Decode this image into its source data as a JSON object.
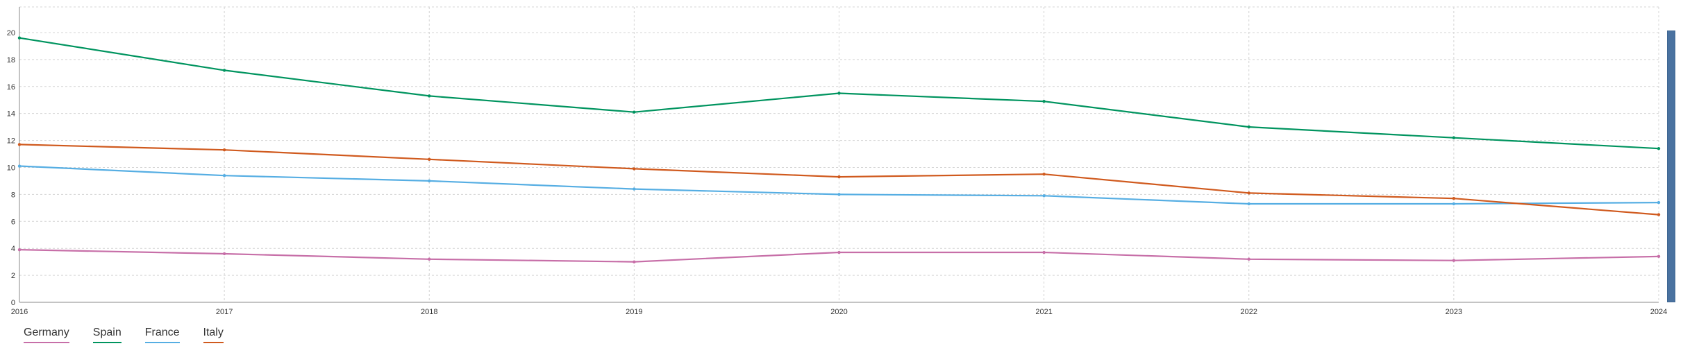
{
  "chart_data": {
    "type": "line",
    "x": [
      2016,
      2017,
      2018,
      2019,
      2020,
      2021,
      2022,
      2023,
      2024
    ],
    "ylim": [
      0,
      21.9
    ],
    "yticks": [
      0,
      2,
      4,
      6,
      8,
      10,
      12,
      14,
      16,
      18,
      20
    ],
    "grid": true,
    "legend_position": "bottom-left",
    "series": [
      {
        "name": "Germany",
        "color": "#c76fa8",
        "values": [
          3.9,
          3.6,
          3.2,
          3.0,
          3.7,
          3.7,
          3.2,
          3.1,
          3.4
        ]
      },
      {
        "name": "Spain",
        "color": "#00945f",
        "values": [
          19.6,
          17.2,
          15.3,
          14.1,
          15.5,
          14.9,
          13.0,
          12.2,
          11.4
        ]
      },
      {
        "name": "France",
        "color": "#56aee3",
        "values": [
          10.1,
          9.4,
          9.0,
          8.4,
          8.0,
          7.9,
          7.3,
          7.3,
          7.4
        ]
      },
      {
        "name": "Italy",
        "color": "#d05a1e",
        "values": [
          11.7,
          11.3,
          10.6,
          9.9,
          9.3,
          9.5,
          8.1,
          7.7,
          6.5
        ]
      }
    ]
  }
}
